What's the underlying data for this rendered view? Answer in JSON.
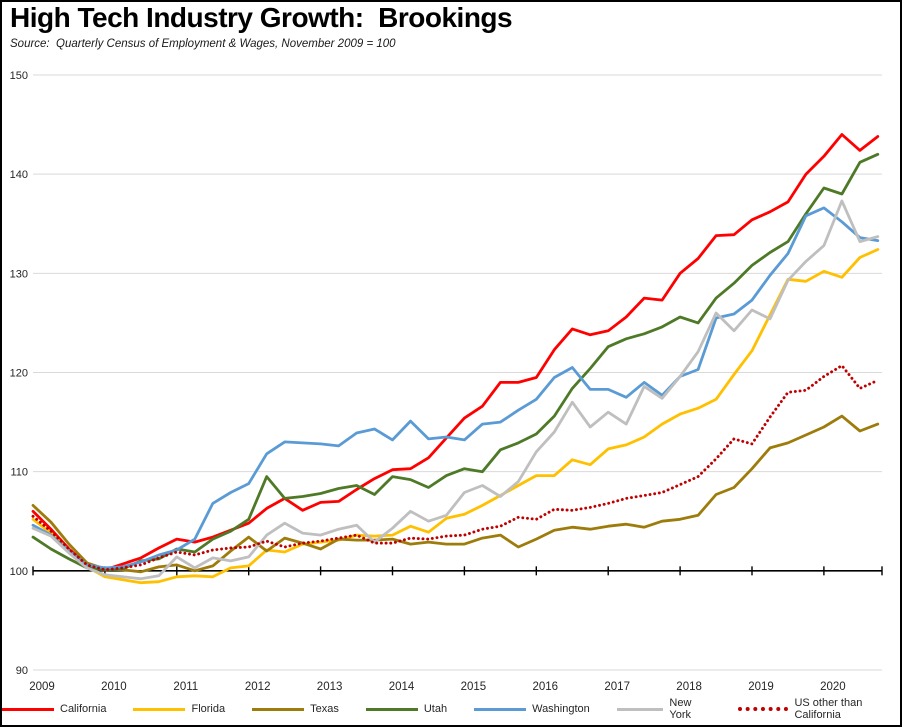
{
  "header": {
    "title": "High Tech Industry Growth:  Brookings",
    "source_note": "Source:  Quarterly Census of Employment & Wages, November 2009 = 100"
  },
  "chart_data": {
    "type": "line",
    "title": "High Tech Industry Growth:  Brookings",
    "subtitle": "Source:  Quarterly Census of Employment & Wages, November 2009 = 100",
    "index_note": "November 2009 = 100",
    "x_unit": "year, quarterly points",
    "x_start": 2009.0,
    "x_step": 0.25,
    "xlim": [
      2009.0,
      2020.8
    ],
    "ylim": [
      90,
      150
    ],
    "y_ticks": [
      90,
      100,
      110,
      120,
      130,
      140,
      150
    ],
    "x_tick_labels": [
      "2009",
      "2010",
      "2011",
      "2012",
      "2013",
      "2014",
      "2015",
      "2016",
      "2017",
      "2018",
      "2019",
      "2020"
    ],
    "grid": "horizontal-only",
    "baseline_value": 100,
    "legend_position": "bottom",
    "colors": {
      "grid": "#D9D9D9",
      "baseline": "#000000",
      "tick_label": "#262626"
    },
    "series": [
      {
        "name": "California",
        "color": "#FF0000",
        "style": "solid",
        "values": [
          106.0,
          104.2,
          102.2,
          100.6,
          100.1,
          100.7,
          101.3,
          102.3,
          103.2,
          102.9,
          103.4,
          104.1,
          104.8,
          106.3,
          107.3,
          106.1,
          106.9,
          107.0,
          108.2,
          109.3,
          110.2,
          110.3,
          111.4,
          113.4,
          115.4,
          116.6,
          119.0,
          119.0,
          119.5,
          122.3,
          124.4,
          123.8,
          124.2,
          125.6,
          127.5,
          127.3,
          130.0,
          131.5,
          133.8,
          133.9,
          135.4,
          136.2,
          137.2,
          140.0,
          141.8,
          144.0,
          142.4,
          143.8
        ]
      },
      {
        "name": "Florida",
        "color": "#FFC000",
        "style": "solid",
        "values": [
          105.2,
          103.8,
          102.0,
          100.4,
          99.4,
          99.1,
          98.8,
          98.9,
          99.4,
          99.5,
          99.4,
          100.3,
          100.5,
          102.1,
          101.9,
          102.7,
          102.9,
          103.1,
          103.6,
          103.5,
          103.6,
          104.5,
          103.9,
          105.3,
          105.7,
          106.6,
          107.6,
          108.6,
          109.6,
          109.6,
          111.2,
          110.7,
          112.3,
          112.7,
          113.5,
          114.8,
          115.8,
          116.4,
          117.3,
          119.8,
          122.2,
          125.8,
          129.4,
          129.2,
          130.2,
          129.6,
          131.6,
          132.4
        ]
      },
      {
        "name": "Texas",
        "color": "#9E7C0C",
        "style": "solid",
        "values": [
          106.6,
          104.9,
          102.7,
          100.8,
          100.2,
          100.1,
          99.9,
          100.4,
          100.6,
          100.0,
          100.5,
          102.0,
          103.4,
          102.0,
          103.3,
          102.8,
          102.2,
          103.2,
          103.1,
          103.1,
          103.2,
          102.7,
          102.9,
          102.7,
          102.7,
          103.3,
          103.6,
          102.4,
          103.2,
          104.1,
          104.4,
          104.2,
          104.5,
          104.7,
          104.4,
          105.0,
          105.2,
          105.6,
          107.7,
          108.4,
          110.3,
          112.4,
          112.9,
          113.7,
          114.5,
          115.6,
          114.1,
          114.8
        ]
      },
      {
        "name": "Utah",
        "color": "#4E7A27",
        "style": "solid",
        "values": [
          103.4,
          102.2,
          101.2,
          100.3,
          100.1,
          100.2,
          101.0,
          101.2,
          102.2,
          101.9,
          103.2,
          104.0,
          105.2,
          109.5,
          107.3,
          107.5,
          107.8,
          108.3,
          108.6,
          107.7,
          109.5,
          109.2,
          108.4,
          109.6,
          110.3,
          110.0,
          112.2,
          112.9,
          113.8,
          115.6,
          118.4,
          120.4,
          122.6,
          123.4,
          123.9,
          124.6,
          125.6,
          125.0,
          127.5,
          129.0,
          130.8,
          132.1,
          133.2,
          136.0,
          138.6,
          138.0,
          141.2,
          142.0
        ]
      },
      {
        "name": "Washington",
        "color": "#5B9BD5",
        "style": "solid",
        "values": [
          104.6,
          103.6,
          102.0,
          100.6,
          100.3,
          100.4,
          100.9,
          101.6,
          102.1,
          103.2,
          106.8,
          107.9,
          108.8,
          111.8,
          113.0,
          112.9,
          112.8,
          112.6,
          113.9,
          114.3,
          113.2,
          115.1,
          113.3,
          113.5,
          113.2,
          114.8,
          115.0,
          116.2,
          117.3,
          119.5,
          120.5,
          118.3,
          118.3,
          117.5,
          119.0,
          117.7,
          119.6,
          120.3,
          125.5,
          125.9,
          127.3,
          129.8,
          132.0,
          135.8,
          136.6,
          135.2,
          133.6,
          133.3
        ]
      },
      {
        "name": "New York",
        "color": "#BFBFBF",
        "style": "solid",
        "values": [
          104.3,
          103.5,
          101.8,
          100.3,
          99.6,
          99.4,
          99.2,
          99.5,
          101.4,
          100.3,
          101.3,
          101.0,
          101.4,
          103.6,
          104.8,
          103.8,
          103.6,
          104.2,
          104.6,
          102.9,
          104.3,
          106.0,
          105.0,
          105.6,
          107.9,
          108.6,
          107.5,
          109.0,
          112.0,
          114.0,
          117.0,
          114.5,
          116.0,
          114.8,
          118.6,
          117.4,
          119.6,
          122.1,
          126.0,
          124.2,
          126.3,
          125.4,
          129.3,
          131.2,
          132.8,
          137.3,
          133.2,
          133.7
        ]
      },
      {
        "name": "US other than California",
        "color": "#C00000",
        "style": "dotted",
        "values": [
          105.5,
          104.0,
          102.2,
          100.6,
          100.1,
          100.3,
          100.6,
          101.3,
          101.9,
          101.6,
          102.1,
          102.3,
          102.4,
          103.0,
          102.4,
          102.8,
          103.0,
          103.3,
          103.6,
          102.8,
          102.8,
          103.3,
          103.2,
          103.5,
          103.6,
          104.2,
          104.5,
          105.4,
          105.2,
          106.2,
          106.1,
          106.4,
          106.8,
          107.3,
          107.6,
          107.9,
          108.7,
          109.5,
          111.3,
          113.3,
          112.8,
          115.5,
          118.0,
          118.2,
          119.6,
          120.7,
          118.4,
          119.2
        ]
      }
    ]
  }
}
